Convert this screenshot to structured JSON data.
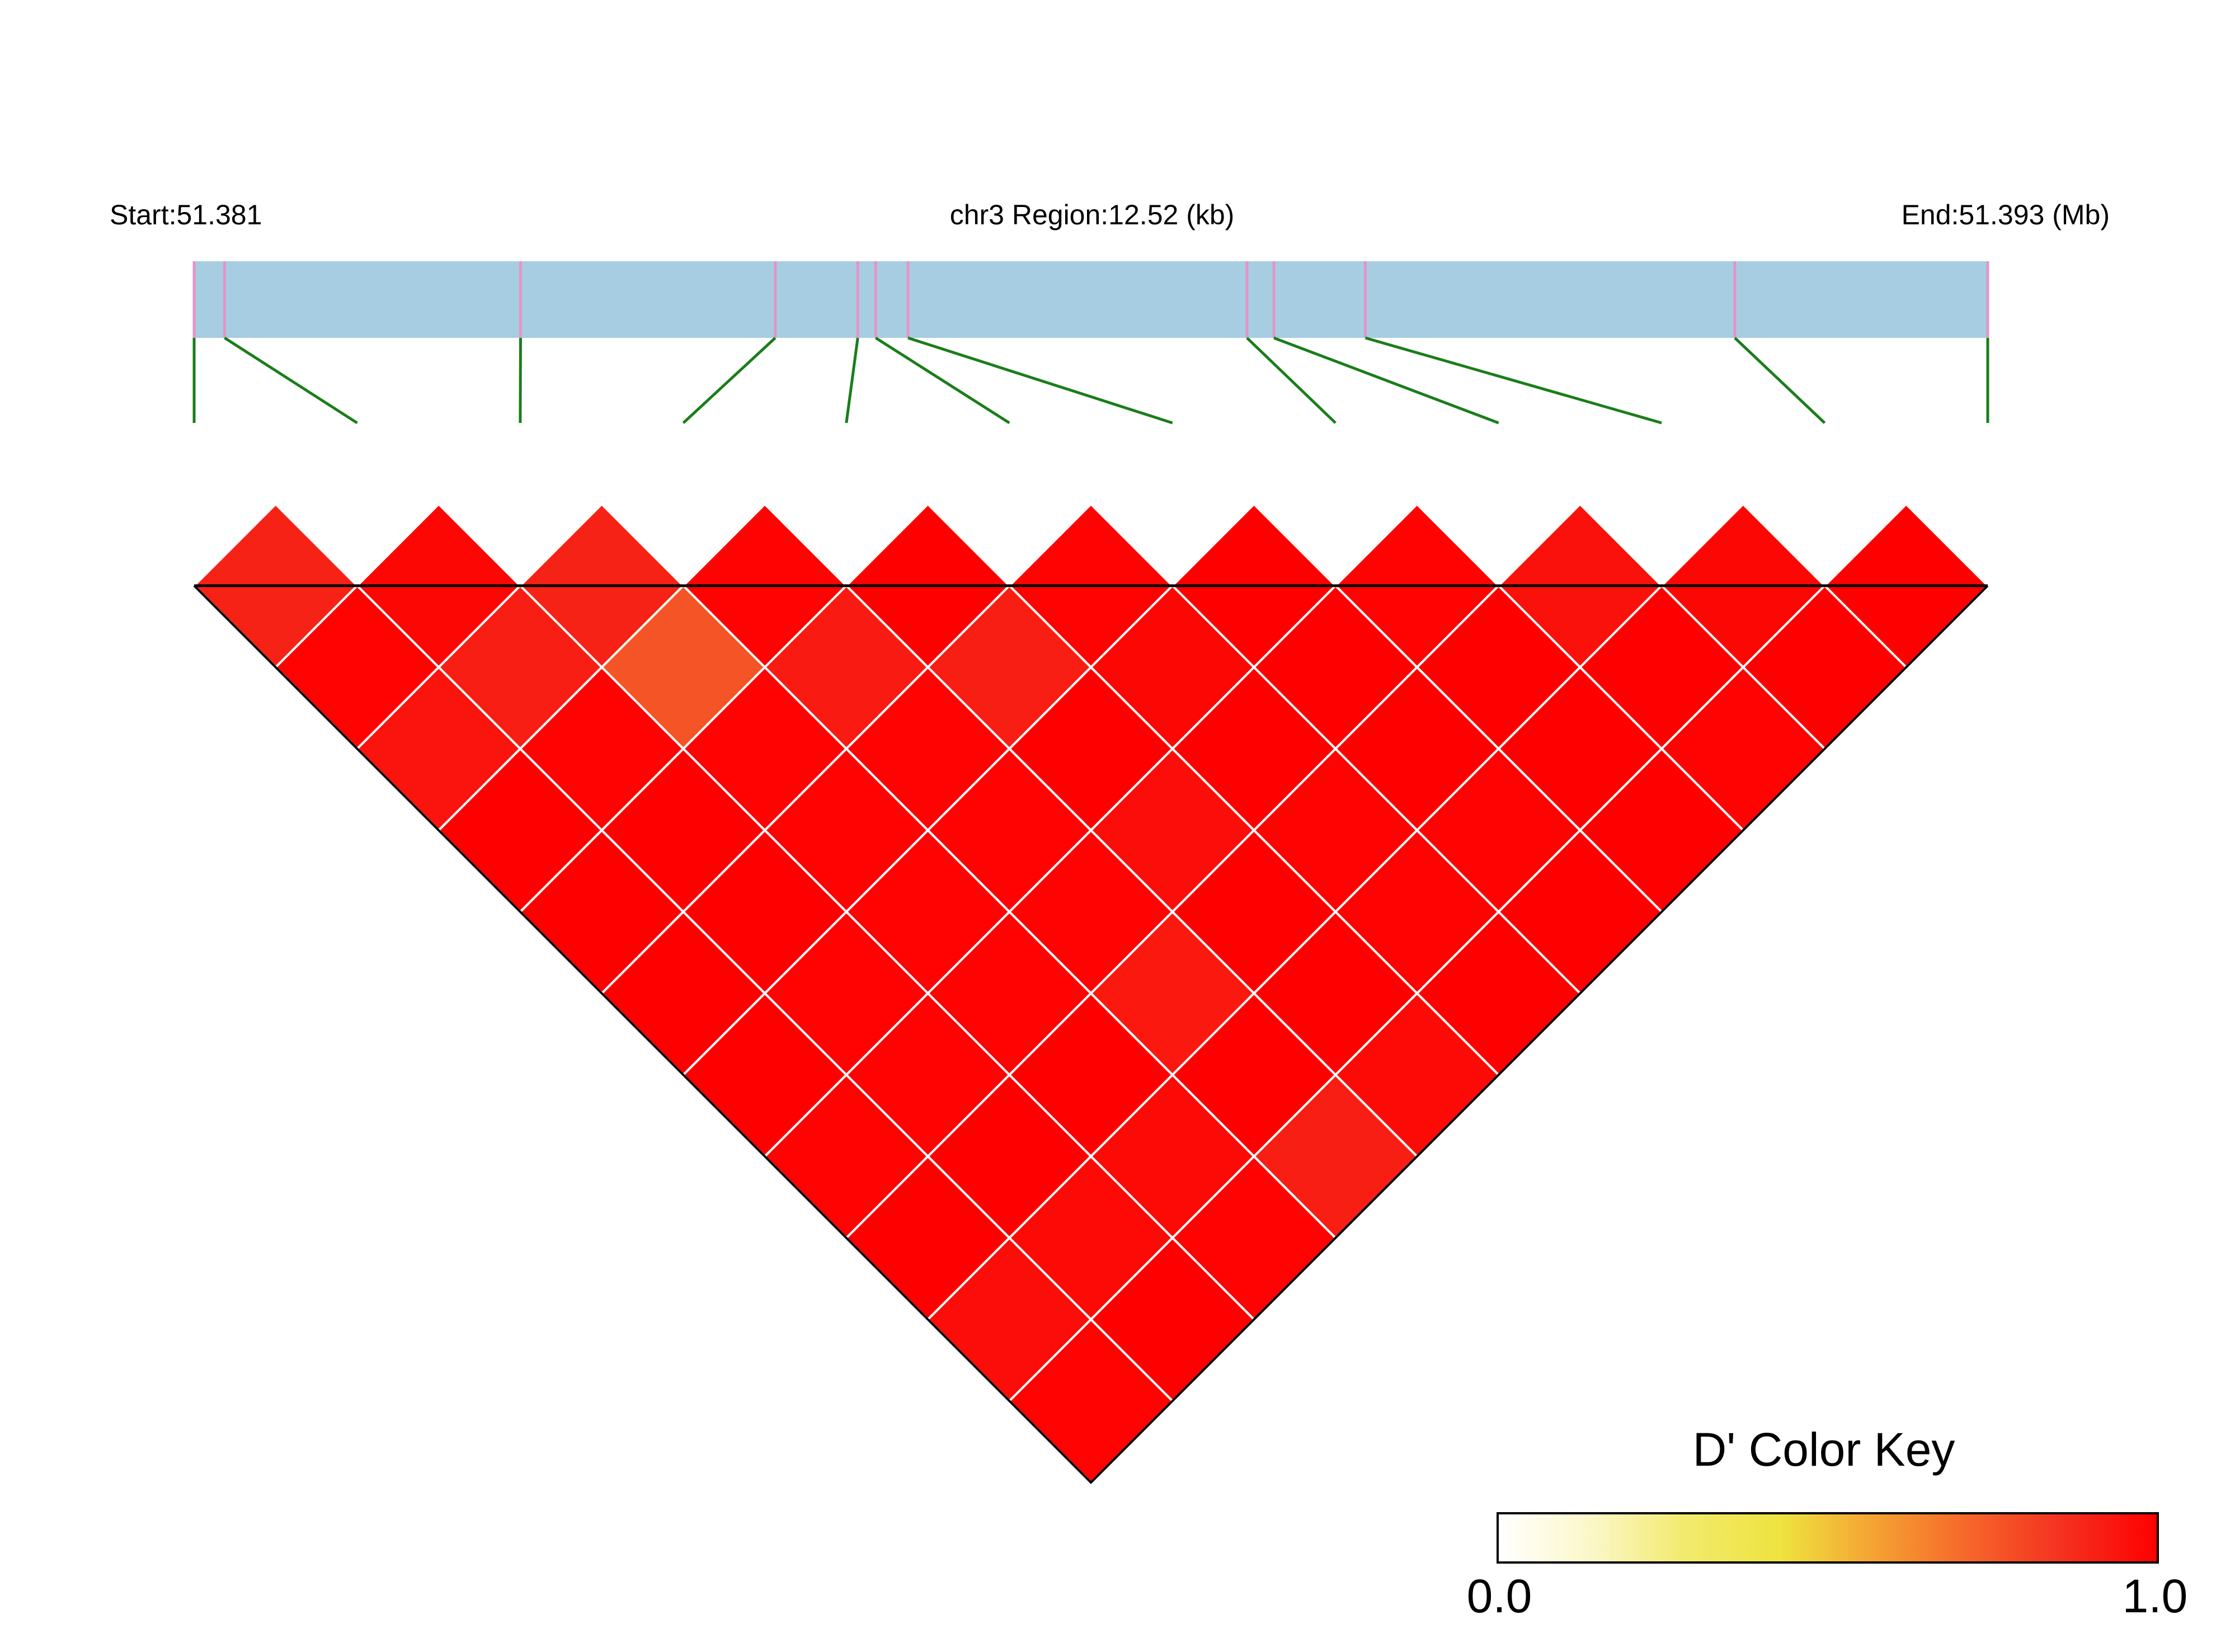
{
  "chart_data": {
    "type": "heatmap",
    "title": "",
    "chromosome": "chr3",
    "start_label": "Start:51.381",
    "region_label": "chr3 Region:12.52 (kb)",
    "end_label": "End:51.393 (Mb)",
    "region_start_mb": 51.381,
    "region_end_mb": 51.393,
    "region_length_kb": 12.52,
    "snp_fractions": [
      0.0,
      0.017,
      0.182,
      0.324,
      0.37,
      0.38,
      0.398,
      0.587,
      0.602,
      0.653,
      0.859,
      1.0
    ],
    "ld_matrix_dprime": [
      [
        0.9,
        0.98,
        0.9,
        0.99,
        1.0,
        0.99,
        1.0,
        0.99,
        0.95,
        0.98,
        1.0
      ],
      [
        0.99,
        0.91,
        0.76,
        0.92,
        0.91,
        0.98,
        1.0,
        1.0,
        1.0,
        1.0
      ],
      [
        0.94,
        0.99,
        0.99,
        0.99,
        1.0,
        1.0,
        1.0,
        1.0,
        0.99
      ],
      [
        1.0,
        1.0,
        0.99,
        0.99,
        0.96,
        0.99,
        0.99,
        1.0
      ],
      [
        1.0,
        1.0,
        0.99,
        0.99,
        1.0,
        0.99,
        1.0
      ],
      [
        1.0,
        0.99,
        0.99,
        0.93,
        1.0,
        1.0
      ],
      [
        1.0,
        0.99,
        1.0,
        1.0,
        0.97
      ],
      [
        0.99,
        1.0,
        0.97,
        0.91
      ],
      [
        1.0,
        0.97,
        0.99
      ],
      [
        0.96,
        1.0
      ],
      [
        0.99
      ]
    ],
    "legend": {
      "title": "D' Color Key",
      "min_label": "0.0",
      "max_label": "1.0",
      "colors": [
        "#ffffff",
        "#fbf7c8",
        "#f2ea6c",
        "#eee33f",
        "#f5a232",
        "#f6662a",
        "#f4301f",
        "#ff0000"
      ],
      "position": "bottom-right"
    }
  },
  "colors": {
    "gene_bar": "#a6cde2",
    "snp_tick": "#e594c8",
    "connector": "#1a7e1a",
    "cell_border": "#ffffff"
  }
}
